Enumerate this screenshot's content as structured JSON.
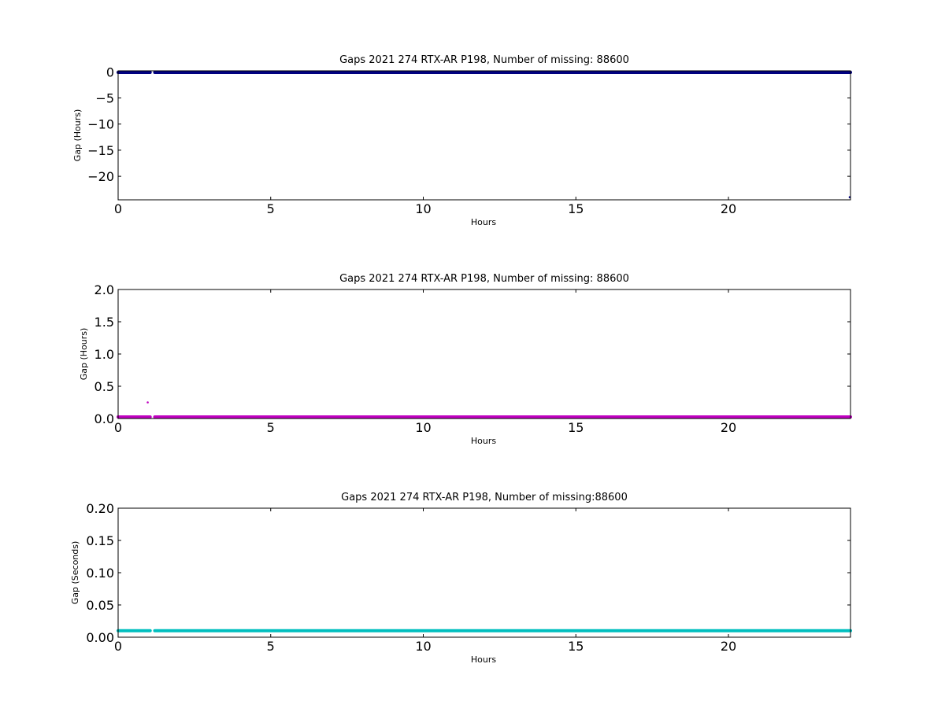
{
  "chart_data": [
    {
      "type": "scatter",
      "title": "Gaps 2021 274 RTX-AR  P198, Number of missing: 88600",
      "xlabel": "Hours",
      "ylabel": "Gap (Hours)",
      "xlim": [
        0,
        24
      ],
      "ylim": [
        -24.5,
        0.2
      ],
      "xticks": [
        0,
        5,
        10,
        15,
        20
      ],
      "yticks": [
        0,
        -5,
        -10,
        -15,
        -20
      ],
      "ytick_labels": [
        "0",
        "−5",
        "−10",
        "−15",
        "−20"
      ],
      "color": "#000080",
      "grid": false,
      "series": [
        {
          "segments": [
            {
              "x": [
                0,
                1.05
              ],
              "y": 0
            },
            {
              "x": [
                1.2,
                24
              ],
              "y": 0
            }
          ],
          "points": [
            {
              "x": 24,
              "y": -24
            }
          ]
        }
      ]
    },
    {
      "type": "scatter",
      "title": "Gaps 2021 274 RTX-AR  P198, Number of missing: 88600",
      "xlabel": "Hours",
      "ylabel": "Gap (Hours)",
      "xlim": [
        0,
        24
      ],
      "ylim": [
        0,
        2
      ],
      "xticks": [
        0,
        5,
        10,
        15,
        20
      ],
      "yticks": [
        0,
        0.5,
        1,
        1.5,
        2
      ],
      "ytick_labels": [
        "0.0",
        "0.5",
        "1.0",
        "1.5",
        "2.0"
      ],
      "color": "#c000c0",
      "grid": false,
      "series": [
        {
          "segments": [
            {
              "x": [
                0,
                1.05
              ],
              "y": 0.01
            },
            {
              "x": [
                1.2,
                24
              ],
              "y": 0.01
            }
          ],
          "points": [
            {
              "x": 0.97,
              "y": 0.25
            }
          ]
        }
      ]
    },
    {
      "type": "scatter",
      "title": "Gaps 2021 274 RTX-AR  P198, Number of missing:88600",
      "xlabel": "Hours",
      "ylabel": "Gap (Seconds)",
      "xlim": [
        0,
        24
      ],
      "ylim": [
        0,
        0.2
      ],
      "xticks": [
        0,
        5,
        10,
        15,
        20
      ],
      "yticks": [
        0,
        0.05,
        0.1,
        0.15,
        0.2
      ],
      "ytick_labels": [
        "0.00",
        "0.05",
        "0.10",
        "0.15",
        "0.20"
      ],
      "color": "#00bfbf",
      "grid": false,
      "series": [
        {
          "segments": [
            {
              "x": [
                0,
                1.05
              ],
              "y": 0.01
            },
            {
              "x": [
                1.2,
                24
              ],
              "y": 0.01
            }
          ],
          "points": []
        }
      ]
    }
  ]
}
